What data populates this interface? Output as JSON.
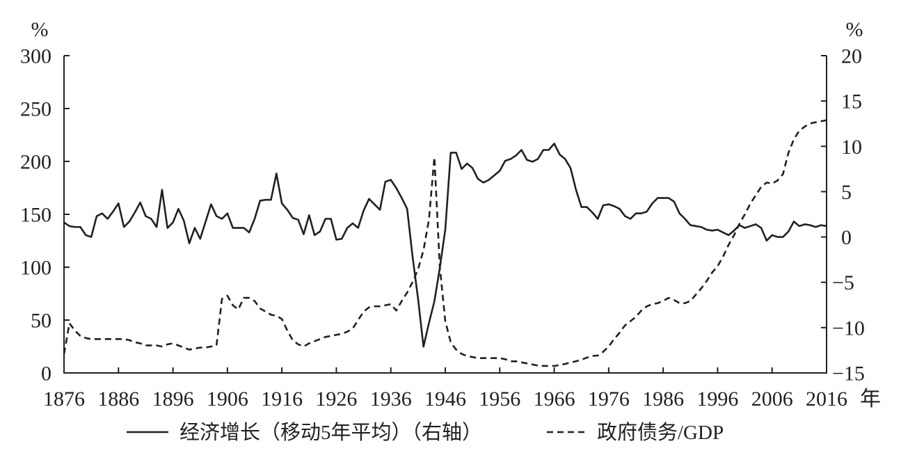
{
  "chart_data": {
    "type": "line",
    "xlabel": "年",
    "ylabel": "%",
    "ylabel_right": "%",
    "xlim": [
      1876,
      2016
    ],
    "ylim": [
      0,
      300
    ],
    "ylim_right": [
      -15,
      20
    ],
    "x_ticks": [
      1876,
      1886,
      1896,
      1906,
      1916,
      1926,
      1936,
      1946,
      1956,
      1966,
      1976,
      1986,
      1996,
      2006,
      2016
    ],
    "y_ticks": [
      0,
      50,
      100,
      150,
      200,
      250,
      300
    ],
    "y_ticks_right": [
      -15,
      -10,
      -5,
      0,
      5,
      10,
      15,
      20
    ],
    "grid": false,
    "legend": "bottom",
    "x": [
      1876,
      1877,
      1878,
      1879,
      1880,
      1881,
      1882,
      1883,
      1884,
      1885,
      1886,
      1887,
      1888,
      1889,
      1890,
      1891,
      1892,
      1893,
      1894,
      1895,
      1896,
      1897,
      1898,
      1899,
      1900,
      1901,
      1902,
      1903,
      1904,
      1905,
      1906,
      1907,
      1908,
      1909,
      1910,
      1911,
      1912,
      1913,
      1914,
      1915,
      1916,
      1917,
      1918,
      1919,
      1920,
      1921,
      1922,
      1923,
      1924,
      1925,
      1926,
      1927,
      1928,
      1929,
      1930,
      1931,
      1932,
      1933,
      1934,
      1935,
      1936,
      1937,
      1938,
      1939,
      1940,
      1941,
      1942,
      1943,
      1944,
      1945,
      1946,
      1947,
      1948,
      1949,
      1950,
      1951,
      1952,
      1953,
      1954,
      1955,
      1956,
      1957,
      1958,
      1959,
      1960,
      1961,
      1962,
      1963,
      1964,
      1965,
      1966,
      1967,
      1968,
      1969,
      1970,
      1971,
      1972,
      1973,
      1974,
      1975,
      1976,
      1977,
      1978,
      1979,
      1980,
      1981,
      1982,
      1983,
      1984,
      1985,
      1986,
      1987,
      1988,
      1989,
      1990,
      1991,
      1992,
      1993,
      1994,
      1995,
      1996,
      1997,
      1998,
      1999,
      2000,
      2001,
      2002,
      2003,
      2004,
      2005,
      2006,
      2007,
      2008,
      2009,
      2010,
      2011,
      2012,
      2013,
      2014,
      2015,
      2016
    ],
    "series": [
      {
        "name": "经济增长（移动5年平均）（右轴）",
        "axis": "right",
        "style": "solid",
        "color": "#231f20",
        "values": [
          1.6,
          1.2,
          1.1,
          1.1,
          0.2,
          0.0,
          2.3,
          2.6,
          2.0,
          2.8,
          3.7,
          1.1,
          1.7,
          2.7,
          3.8,
          2.3,
          2.0,
          1.1,
          5.2,
          1.0,
          1.6,
          3.1,
          1.8,
          -0.7,
          1.0,
          -0.2,
          1.7,
          3.6,
          2.3,
          2.0,
          2.6,
          1.0,
          1.0,
          1.0,
          0.5,
          2.0,
          4.0,
          4.1,
          4.1,
          7.0,
          3.7,
          3.0,
          2.1,
          1.9,
          0.3,
          2.4,
          0.2,
          0.6,
          2.0,
          2.0,
          -0.3,
          -0.2,
          1.0,
          1.5,
          1.0,
          2.9,
          4.2,
          3.6,
          3.0,
          6.1,
          6.3,
          5.4,
          4.3,
          3.1,
          -2.2,
          -6.8,
          -12.1,
          -9.5,
          -7.1,
          -3.4,
          0.8,
          9.3,
          9.3,
          7.5,
          8.1,
          7.6,
          6.4,
          6.0,
          6.3,
          6.8,
          7.3,
          8.4,
          8.6,
          9.0,
          9.6,
          8.5,
          8.3,
          8.6,
          9.6,
          9.6,
          10.3,
          9.1,
          8.6,
          7.6,
          5.2,
          3.3,
          3.3,
          2.7,
          2.0,
          3.5,
          3.6,
          3.4,
          3.1,
          2.3,
          2.0,
          2.6,
          2.6,
          2.8,
          3.7,
          4.3,
          4.3,
          4.3,
          3.9,
          2.6,
          2.0,
          1.3,
          1.2,
          1.1,
          0.8,
          0.7,
          0.8,
          0.5,
          0.2,
          0.7,
          1.3,
          1.0,
          1.2,
          1.4,
          1.0,
          -0.4,
          0.2,
          0.0,
          0.0,
          0.6,
          1.7,
          1.2,
          1.4,
          1.3,
          1.1,
          1.3,
          1.2
        ]
      },
      {
        "name": "政府债务/GDP",
        "axis": "left",
        "style": "dashed",
        "color": "#231f20",
        "values": [
          18,
          47,
          40,
          35,
          33,
          32,
          32,
          32,
          32,
          32,
          32,
          32,
          31,
          29,
          28,
          26,
          26,
          26,
          25,
          27,
          28,
          26,
          24,
          22,
          23,
          24,
          24,
          25,
          26,
          70,
          73,
          64,
          60,
          71,
          71,
          68,
          61,
          58,
          55,
          54,
          51,
          40,
          31,
          27,
          25,
          28,
          30,
          32,
          34,
          35,
          36,
          37,
          39,
          42,
          50,
          58,
          62,
          63,
          63,
          64,
          65,
          59,
          68,
          76,
          86,
          98,
          116,
          145,
          204,
          100,
          49,
          29,
          22,
          18,
          16,
          15,
          14,
          14,
          14,
          14,
          14,
          13,
          11,
          11,
          10,
          9,
          8,
          7,
          6.6,
          6.6,
          6.6,
          7.5,
          8.5,
          10,
          11,
          12.5,
          14.5,
          16,
          16.5,
          20,
          25,
          32,
          38,
          45,
          49,
          53,
          59,
          63,
          65,
          66,
          68,
          71,
          69,
          66,
          66,
          68,
          74,
          80,
          87,
          95,
          101,
          110,
          121,
          130,
          141,
          150,
          160,
          168,
          176,
          180,
          179,
          182,
          188,
          208,
          221,
          229,
          233,
          236,
          237,
          238,
          239
        ]
      }
    ]
  },
  "colors": {
    "text": "#231f20",
    "axis": "#231f20"
  }
}
